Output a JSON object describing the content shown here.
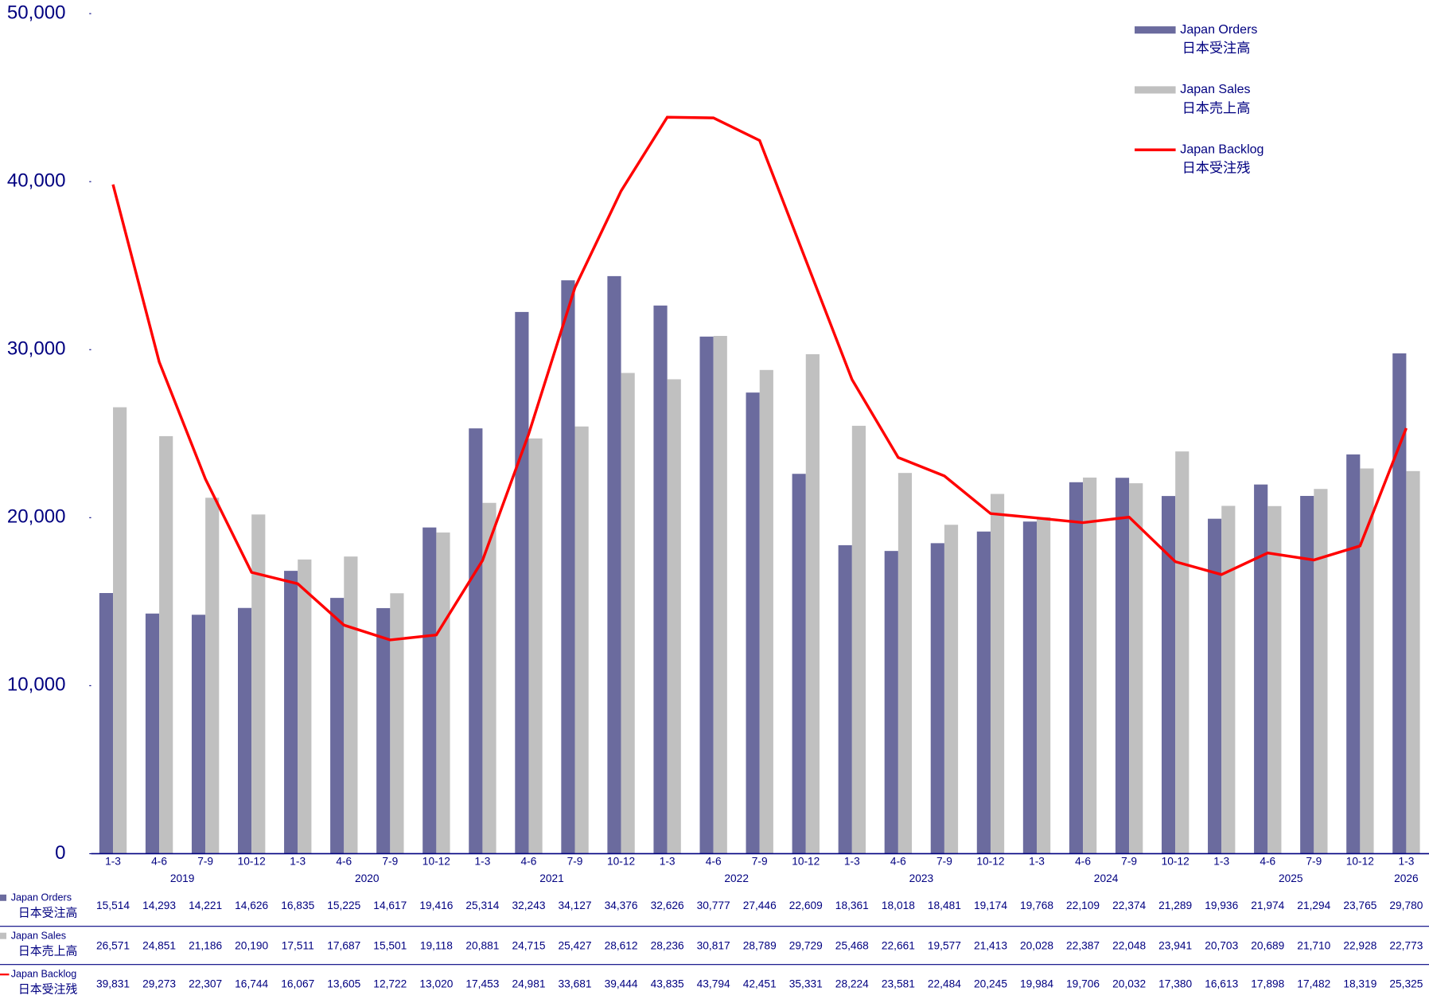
{
  "chart_data": {
    "type": "bar",
    "categories": [
      "1-3",
      "4-6",
      "7-9",
      "10-12",
      "1-3",
      "4-6",
      "7-9",
      "10-12",
      "1-3",
      "4-6",
      "7-9",
      "10-12",
      "1-3",
      "4-6",
      "7-9",
      "10-12",
      "1-3",
      "4-6",
      "7-9",
      "10-12",
      "1-3",
      "4-6",
      "7-9",
      "10-12",
      "1-3",
      "4-6",
      "7-9",
      "10-12",
      "1-3"
    ],
    "years": [
      "2019",
      "2020",
      "2021",
      "2022",
      "2023",
      "2024",
      "2025",
      "2026"
    ],
    "ylim": [
      0,
      50000
    ],
    "yticks": [
      0,
      {
        "value": 10000,
        "label": "10,000"
      },
      {
        "value": 20000,
        "label": "20,000"
      },
      {
        "value": 30000,
        "label": "30,000"
      },
      {
        "value": 40000,
        "label": "40,000"
      },
      {
        "value": 50000,
        "label": "50,000"
      }
    ],
    "legend": "upper right",
    "series": [
      {
        "name": "Japan Orders",
        "name_ja": "日本受注高",
        "type": "bar",
        "color": "#6b6b9e",
        "values": [
          15514,
          14293,
          14221,
          14626,
          16835,
          15225,
          14617,
          19416,
          25314,
          32243,
          34127,
          34376,
          32626,
          30777,
          27446,
          22609,
          18361,
          18018,
          18481,
          19174,
          19768,
          22109,
          22374,
          21289,
          19936,
          21974,
          21294,
          23765,
          29780
        ],
        "value_labels": [
          "15,514",
          "14,293",
          "14,221",
          "14,626",
          "16,835",
          "15,225",
          "14,617",
          "19,416",
          "25,314",
          "32,243",
          "34,127",
          "34,376",
          "32,626",
          "30,777",
          "27,446",
          "22,609",
          "18,361",
          "18,018",
          "18,481",
          "19,174",
          "19,768",
          "22,109",
          "22,374",
          "21,289",
          "19,936",
          "21,974",
          "21,294",
          "23,765",
          "29,780"
        ]
      },
      {
        "name": "Japan Sales",
        "name_ja": "日本売上高",
        "type": "bar",
        "color": "#c0c0c0",
        "values": [
          26571,
          24851,
          21186,
          20190,
          17511,
          17687,
          15501,
          19118,
          20881,
          24715,
          25427,
          28612,
          28236,
          30817,
          28789,
          29729,
          25468,
          22661,
          19577,
          21413,
          20028,
          22387,
          22048,
          23941,
          20703,
          20689,
          21710,
          22928,
          22773
        ],
        "value_labels": [
          "26,571",
          "24,851",
          "21,186",
          "20,190",
          "17,511",
          "17,687",
          "15,501",
          "19,118",
          "20,881",
          "24,715",
          "25,427",
          "28,612",
          "28,236",
          "30,817",
          "28,789",
          "29,729",
          "25,468",
          "22,661",
          "19,577",
          "21,413",
          "20,028",
          "22,387",
          "22,048",
          "23,941",
          "20,703",
          "20,689",
          "21,710",
          "22,928",
          "22,773"
        ]
      },
      {
        "name": "Japan Backlog",
        "name_ja": "日本受注残",
        "type": "line",
        "color": "#ff0000",
        "values": [
          39831,
          29273,
          22307,
          16744,
          16067,
          13605,
          12722,
          13020,
          17453,
          24981,
          33681,
          39444,
          43835,
          43794,
          42451,
          35331,
          28224,
          23581,
          22484,
          20245,
          19984,
          19706,
          20032,
          17380,
          16613,
          17898,
          17482,
          18319,
          25325
        ],
        "value_labels": [
          "39,831",
          "29,273",
          "22,307",
          "16,744",
          "16,067",
          "13,605",
          "12,722",
          "13,020",
          "17,453",
          "24,981",
          "33,681",
          "39,444",
          "43,835",
          "43,794",
          "42,451",
          "35,331",
          "28,224",
          "23,581",
          "22,484",
          "20,245",
          "19,984",
          "19,706",
          "20,032",
          "17,380",
          "16,613",
          "17,898",
          "17,482",
          "18,319",
          "25,325"
        ]
      }
    ]
  }
}
